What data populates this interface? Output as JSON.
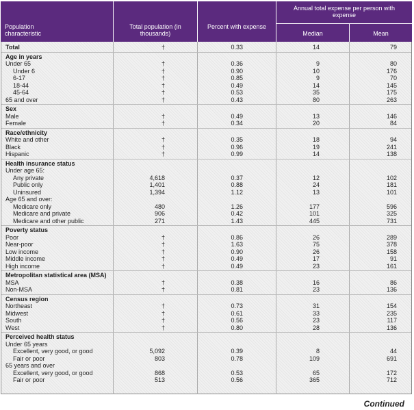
{
  "header": {
    "characteristic": "Population characteristic",
    "total_population": "Total population (in thousands)",
    "percent": "Percent with expense",
    "annual": "Annual total expense per person with expense",
    "median": "Median",
    "mean": "Mean"
  },
  "table": {
    "total": [
      "Total",
      "†",
      "0.33",
      "14",
      "79"
    ],
    "sections": [
      {
        "title": "Age in years",
        "rows": [
          {
            "cells": [
              "Under 65",
              "†",
              "0.36",
              "9",
              "80"
            ],
            "rows": [
              [
                "Under 6",
                "†",
                "0.90",
                "10",
                "176"
              ],
              [
                "6-17",
                "†",
                "0.85",
                "9",
                "70"
              ],
              [
                "18-44",
                "†",
                "0.49",
                "14",
                "145"
              ],
              [
                "45-64",
                "†",
                "0.53",
                "35",
                "175"
              ]
            ]
          },
          [
            "65 and over",
            "†",
            "0.43",
            "80",
            "263"
          ]
        ]
      },
      {
        "title": "Sex",
        "rows": [
          [
            "Male",
            "†",
            "0.49",
            "13",
            "146"
          ],
          [
            "Female",
            "†",
            "0.34",
            "20",
            "84"
          ]
        ]
      },
      {
        "title": "Race/ethnicity",
        "rows": [
          [
            "White and other",
            "†",
            "0.35",
            "18",
            "94"
          ],
          [
            "Black",
            "†",
            "0.96",
            "19",
            "241"
          ],
          [
            "Hispanic",
            "†",
            "0.99",
            "14",
            "138"
          ]
        ]
      },
      {
        "title": "Health insurance status",
        "rows": [
          {
            "cells": [
              "Under age 65:"
            ],
            "rows": [
              [
                "Any private",
                "4,618",
                "0.37",
                "12",
                "102"
              ],
              [
                "Public only",
                "1,401",
                "0.88",
                "24",
                "181"
              ],
              [
                "Uninsured",
                "1,394",
                "1.12",
                "13",
                "101"
              ]
            ]
          },
          {
            "cells": [
              "Age 65 and over:"
            ],
            "rows": [
              [
                "Medicare only",
                "480",
                "1.26",
                "177",
                "596"
              ],
              [
                "Medicare and private",
                "906",
                "0.42",
                "101",
                "325"
              ],
              [
                "Medicare and other public",
                "271",
                "1.43",
                "445",
                "731"
              ]
            ]
          }
        ]
      },
      {
        "title": "Poverty status",
        "rows": [
          [
            "Poor",
            "†",
            "0.86",
            "26",
            "289"
          ],
          [
            "Near-poor",
            "†",
            "1.63",
            "75",
            "378"
          ],
          [
            "Low income",
            "†",
            "0.90",
            "26",
            "158"
          ],
          [
            "Middle income",
            "†",
            "0.49",
            "17",
            "91"
          ],
          [
            "High income",
            "†",
            "0.49",
            "23",
            "161"
          ]
        ]
      },
      {
        "title": "Metropolitan statistical area (MSA)",
        "rows": [
          [
            "MSA",
            "†",
            "0.38",
            "16",
            "86"
          ],
          [
            "Non-MSA",
            "†",
            "0.81",
            "23",
            "136"
          ]
        ]
      },
      {
        "title": "Census region",
        "rows": [
          [
            "Northeast",
            "†",
            "0.73",
            "31",
            "154"
          ],
          [
            "Midwest",
            "†",
            "0.61",
            "33",
            "235"
          ],
          [
            "South",
            "†",
            "0.56",
            "23",
            "117"
          ],
          [
            "West",
            "†",
            "0.80",
            "28",
            "136"
          ]
        ]
      },
      {
        "title": "Perceived health status",
        "rows": [
          {
            "cells": [
              "Under 65 years"
            ],
            "rows": [
              [
                "Excellent, very good, or good",
                "5,092",
                "0.39",
                "8",
                "44"
              ],
              [
                "Fair or poor",
                "803",
                "0.78",
                "109",
                "691"
              ]
            ]
          },
          {
            "cells": [
              "65 years and over"
            ],
            "rows": [
              [
                "Excellent, very good, or good",
                "868",
                "0.53",
                "65",
                "172"
              ],
              [
                "Fair or poor",
                "513",
                "0.56",
                "365",
                "712"
              ]
            ]
          }
        ]
      }
    ]
  },
  "footer": {
    "continued": "Continued"
  }
}
